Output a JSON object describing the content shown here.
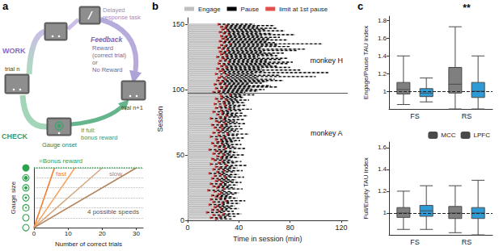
{
  "panel_labels": [
    "a",
    "b",
    "c"
  ],
  "diagram": {
    "work": "WORK",
    "check": "CHECK",
    "task": [
      "Delayed",
      "response task"
    ],
    "feedback": "Feedback",
    "feedback_text": [
      "Reward",
      "(correct trial)",
      "or",
      "No Reward"
    ],
    "gauge": "Gauge onset",
    "bonus": [
      "If full:",
      "bonus reward"
    ],
    "trial_n": "trial n",
    "trial_n1": "trial n+1"
  },
  "chart_data": [
    {
      "type": "line",
      "xlabel": "Number of correct trials",
      "ylabel": "Gauge size",
      "xlim": [
        0,
        32
      ],
      "xticks": [
        0,
        10,
        20,
        30
      ],
      "ylim": [
        0,
        6
      ],
      "yticks": [
        0,
        1,
        2,
        3,
        4,
        5,
        6
      ],
      "tick_labels": "x",
      "grid": true,
      "hline": 6,
      "annotations": [
        "=Bonus reward",
        "fast",
        "slow",
        "4 possible speeds"
      ],
      "series": [
        {
          "color": "#f07f2e",
          "x": [
            0,
            6
          ],
          "values": [
            0,
            6
          ]
        },
        {
          "color": "#f5a562",
          "x": [
            0,
            12
          ],
          "values": [
            0,
            6
          ]
        },
        {
          "color": "#d6a983",
          "x": [
            0,
            20
          ],
          "values": [
            0,
            6
          ]
        },
        {
          "color": "#b5835a",
          "x": [
            0,
            30
          ],
          "values": [
            0,
            6
          ]
        }
      ]
    },
    {
      "type": "timeline",
      "orientation": "horizontal",
      "xlabel": "Time in session (min)",
      "ylabel": "Session",
      "xlim": [
        0,
        125
      ],
      "xticks": [
        0,
        40,
        80,
        120
      ],
      "ylim": [
        0,
        155
      ],
      "yticks": [
        0,
        50,
        100,
        150
      ],
      "hline": 97.5,
      "annotations": [
        "monkey H",
        "monkey A"
      ],
      "legend": "top",
      "series": [
        {
          "name": "Engage",
          "color": "#bfbfbf"
        },
        {
          "name": "Pause",
          "color": "#000000"
        },
        {
          "name": "limit at 1st pause",
          "color": "#e02020"
        }
      ],
      "sessions": [
        1,
        2,
        3,
        4,
        5,
        6,
        7,
        8,
        9,
        10,
        11,
        12,
        13,
        14,
        15,
        16,
        17,
        18,
        19,
        20,
        21,
        22,
        23,
        24,
        25,
        26,
        27,
        28,
        29,
        30,
        31,
        32,
        33,
        34,
        35,
        36,
        37,
        38,
        39,
        40,
        41,
        42,
        43,
        44,
        45,
        46,
        47,
        48,
        49,
        50,
        51,
        52,
        53,
        54,
        55,
        56,
        57,
        58,
        59,
        60,
        61,
        62,
        63,
        64,
        65,
        66,
        67,
        68,
        69,
        70,
        71,
        72,
        73,
        74,
        75,
        76,
        77,
        78,
        79,
        80,
        81,
        82,
        83,
        84,
        85,
        86,
        87,
        88,
        89,
        90,
        91,
        92,
        93,
        94,
        95,
        96,
        97,
        98,
        99,
        100,
        101,
        102,
        103,
        104,
        105,
        106,
        107,
        108,
        109,
        110,
        111,
        112,
        113,
        114,
        115,
        116,
        117,
        118,
        119,
        120,
        121,
        122,
        123,
        124,
        125,
        126,
        127,
        128,
        129,
        130,
        131,
        132,
        133,
        134,
        135,
        136,
        137,
        138,
        139,
        140,
        141,
        142,
        143,
        144,
        145,
        146,
        147,
        148,
        149,
        150
      ],
      "first_pause": [
        22,
        18,
        25,
        20,
        28,
        15,
        24,
        19,
        26,
        21,
        23,
        17,
        27,
        20,
        30,
        18,
        25,
        22,
        19,
        24,
        26,
        21,
        16,
        28,
        23,
        20,
        25,
        18,
        27,
        22,
        24,
        19,
        29,
        21,
        26,
        17,
        23,
        28,
        20,
        25,
        22,
        30,
        18,
        24,
        27,
        21,
        19,
        26,
        23,
        28,
        20,
        25,
        22,
        17,
        29,
        24,
        21,
        27,
        19,
        23,
        26,
        22,
        28,
        18,
        24,
        31,
        20,
        25,
        23,
        27,
        21,
        26,
        19,
        29,
        24,
        22,
        28,
        18,
        25,
        30,
        23,
        27,
        20,
        26,
        32,
        22,
        25,
        29,
        21,
        28,
        24,
        30,
        22,
        27,
        26,
        33,
        25,
        20,
        24,
        28,
        22,
        26,
        30,
        21,
        25,
        27,
        23,
        29,
        24,
        26,
        31,
        22,
        28,
        25,
        27,
        23,
        30,
        26,
        28,
        24,
        32,
        25,
        29,
        27,
        23,
        30,
        26,
        28,
        25,
        31,
        27,
        24,
        29,
        26,
        33,
        28,
        25,
        30,
        27,
        29,
        26,
        32,
        28,
        25,
        31,
        27,
        29,
        26,
        30,
        24
      ],
      "end": [
        35,
        30,
        38,
        33,
        42,
        28,
        36,
        31,
        40,
        34,
        37,
        29,
        41,
        33,
        45,
        30,
        39,
        35,
        32,
        38,
        40,
        34,
        29,
        43,
        37,
        33,
        39,
        31,
        42,
        36,
        38,
        32,
        44,
        35,
        40,
        30,
        37,
        43,
        34,
        39,
        36,
        46,
        31,
        38,
        42,
        35,
        33,
        40,
        37,
        44,
        34,
        39,
        36,
        30,
        45,
        38,
        35,
        42,
        33,
        37,
        41,
        36,
        44,
        31,
        39,
        48,
        34,
        40,
        38,
        43,
        35,
        41,
        33,
        45,
        39,
        37,
        44,
        32,
        40,
        47,
        38,
        43,
        34,
        42,
        50,
        37,
        41,
        46,
        36,
        45,
        40,
        48,
        38,
        44,
        43,
        52,
        41,
        45,
        55,
        60,
        50,
        70,
        65,
        48,
        58,
        62,
        75,
        68,
        55,
        100,
        72,
        52,
        110,
        60,
        88,
        58,
        80,
        70,
        65,
        78,
        82,
        62,
        74,
        78,
        55,
        70,
        66,
        75,
        60,
        85,
        92,
        58,
        80,
        70,
        105,
        68,
        62,
        78,
        64,
        72,
        58,
        84,
        66,
        57,
        76,
        61,
        70,
        55,
        68,
        52
      ]
    },
    {
      "type": "boxplot",
      "ylabel": "Engage/Pause TAU index",
      "categories": [
        "FS",
        "RS"
      ],
      "ylim": [
        0.8,
        1.85
      ],
      "yticks": [
        1,
        1.2,
        1.4,
        1.6,
        1.8
      ],
      "hline": 1,
      "annotations": [
        {
          "text": "**",
          "category": "RS"
        }
      ],
      "series": [
        {
          "name": "MCC",
          "color": "#7f7f7f",
          "values": [
            [
              0.85,
              0.97,
              1.02,
              1.1,
              1.4
            ],
            [
              0.8,
              0.98,
              1.08,
              1.27,
              1.73
            ]
          ]
        },
        {
          "name": "LPFC",
          "color": "#2e9bd6",
          "values": [
            [
              0.88,
              0.94,
              0.98,
              1.03,
              1.15
            ],
            [
              0.8,
              0.93,
              1.0,
              1.1,
              1.4
            ]
          ]
        }
      ]
    },
    {
      "type": "boxplot",
      "ylabel": "Full/Empty TAU index",
      "categories": [
        "FS",
        "RS"
      ],
      "ylim": [
        0.8,
        1.65
      ],
      "yticks": [
        1,
        1.2,
        1.4,
        1.6
      ],
      "hline": 1,
      "legend": "top-right",
      "series": [
        {
          "name": "MCC",
          "color": "#7f7f7f",
          "values": [
            [
              0.85,
              0.96,
              1.0,
              1.05,
              1.2
            ],
            [
              0.82,
              0.95,
              1.0,
              1.06,
              1.25
            ]
          ]
        },
        {
          "name": "LPFC",
          "color": "#2e9bd6",
          "values": [
            [
              0.85,
              0.97,
              1.02,
              1.07,
              1.25
            ],
            [
              0.8,
              0.95,
              1.0,
              1.05,
              1.3
            ]
          ]
        }
      ]
    }
  ]
}
